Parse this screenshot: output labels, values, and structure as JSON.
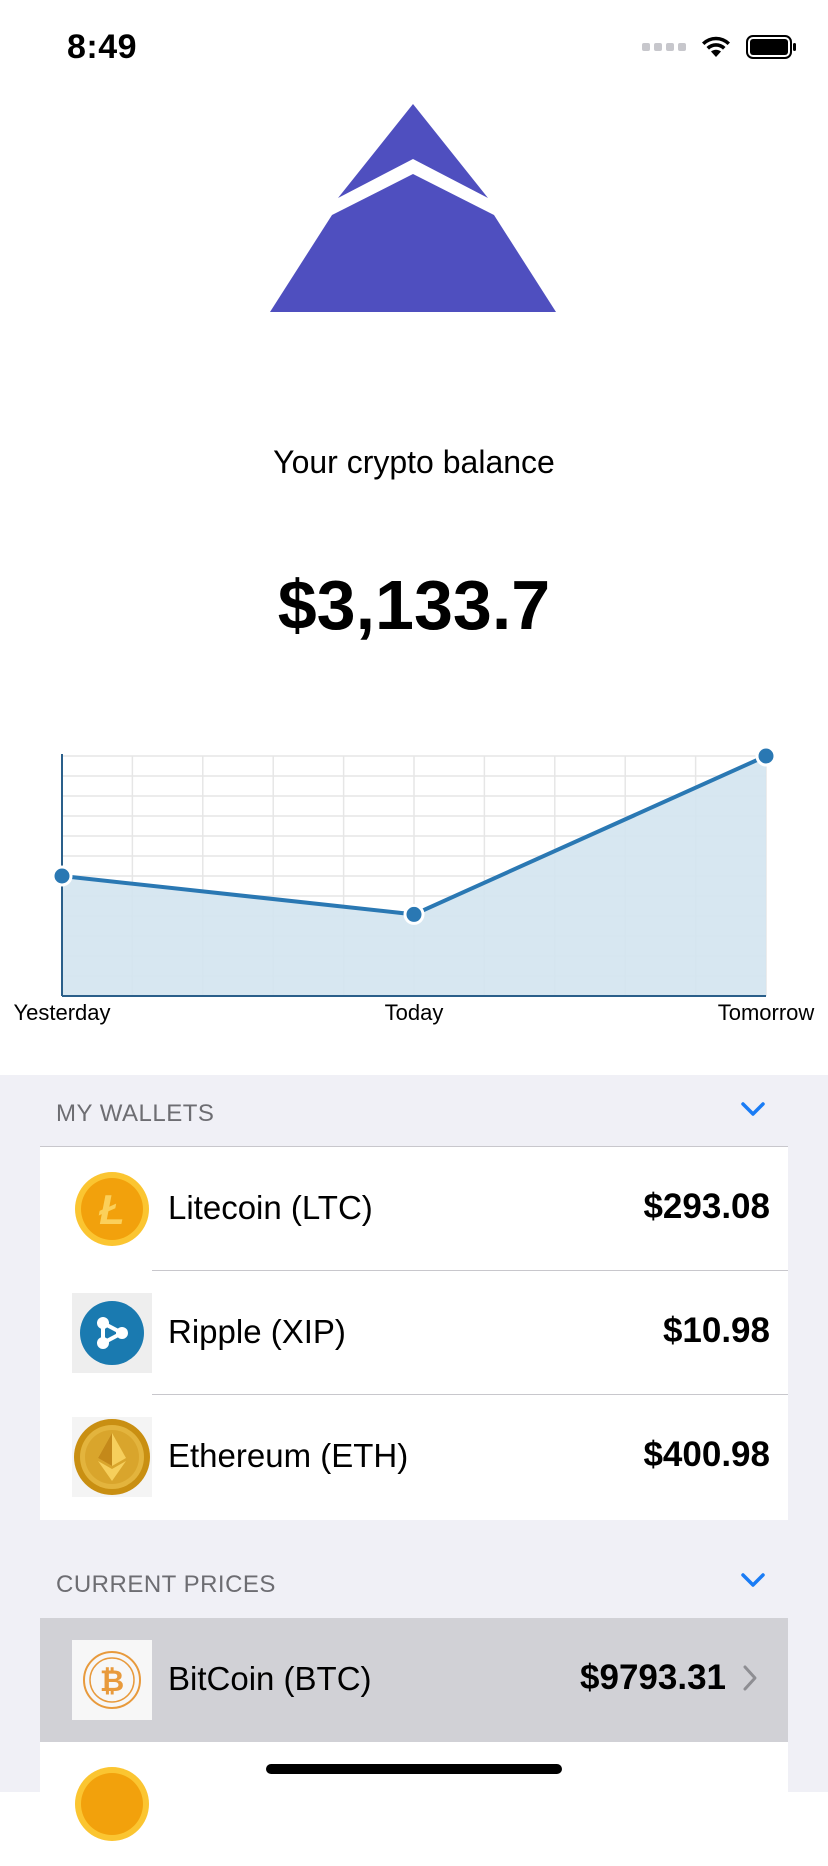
{
  "status": {
    "time": "8:49"
  },
  "balance": {
    "label": "Your crypto balance",
    "value": "$3,133.7"
  },
  "chart_data": {
    "type": "area",
    "categories": [
      "Yesterday",
      "Today",
      "Tomorrow"
    ],
    "series": [
      {
        "values": [
          50,
          34,
          100
        ]
      }
    ],
    "ylim": [
      0,
      100
    ],
    "grid": true,
    "color": "#2a78b3",
    "fill": "#d3e4f0"
  },
  "wallets": {
    "title": "MY WALLETS",
    "items": [
      {
        "name": "Litecoin (LTC)",
        "amount": "$293.08",
        "icon": "litecoin-icon"
      },
      {
        "name": "Ripple (XIP)",
        "amount": "$10.98",
        "icon": "ripple-icon"
      },
      {
        "name": "Ethereum (ETH)",
        "amount": "$400.98",
        "icon": "ethereum-icon"
      }
    ]
  },
  "prices": {
    "title": "CURRENT PRICES",
    "items": [
      {
        "name": "BitCoin (BTC)",
        "amount": "$9793.31",
        "icon": "bitcoin-icon"
      }
    ]
  },
  "colors": {
    "accent": "#4f4fbf",
    "ios_blue": "#1a7cf5",
    "chart": "#2a78b3"
  }
}
